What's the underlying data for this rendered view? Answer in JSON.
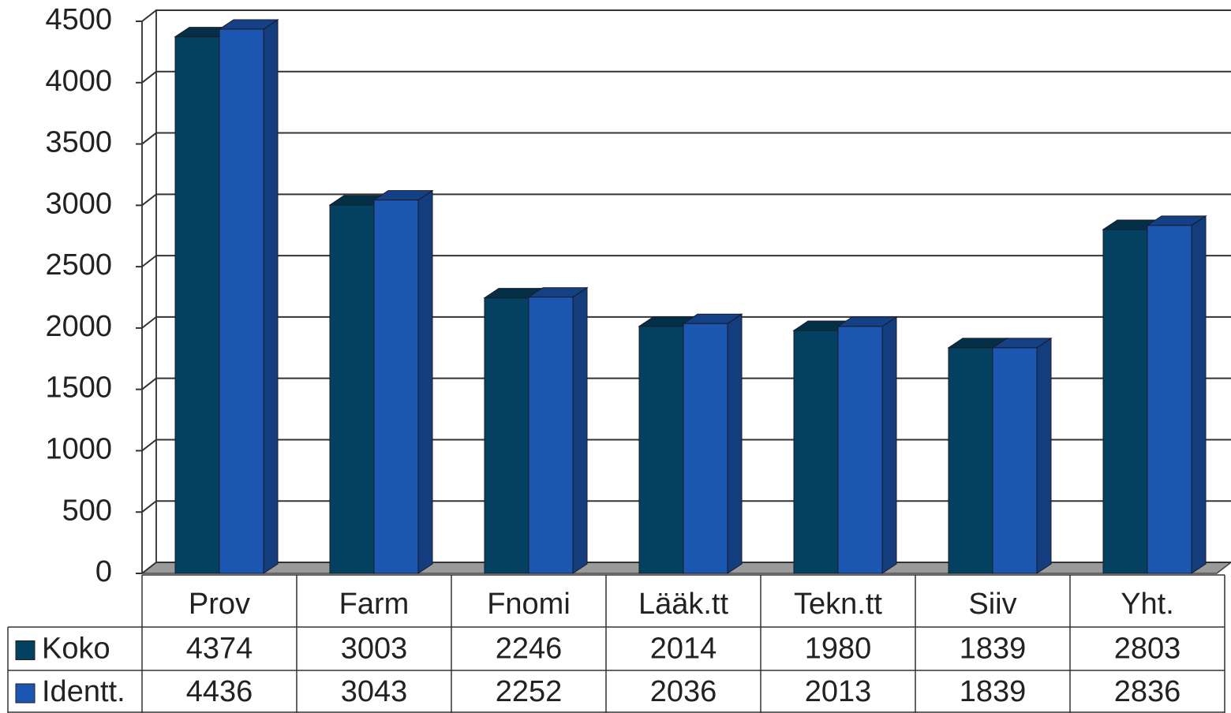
{
  "chart_data": {
    "type": "bar",
    "categories": [
      "Prov",
      "Farm",
      "Fnomi",
      "Lääk.tt",
      "Tekn.tt",
      "Siiv",
      "Yht."
    ],
    "series": [
      {
        "name": "Koko",
        "color": "#04405f",
        "values": [
          4374,
          3003,
          2246,
          2014,
          1980,
          1839,
          2803
        ]
      },
      {
        "name": "Identt.",
        "color": "#1b57b1",
        "values": [
          4436,
          3043,
          2252,
          2036,
          2013,
          1839,
          2836
        ]
      }
    ],
    "ylim": [
      0,
      4500
    ],
    "yticks": [
      0,
      500,
      1000,
      1500,
      2000,
      2500,
      3000,
      3500,
      4000,
      4500
    ],
    "grid": true
  }
}
